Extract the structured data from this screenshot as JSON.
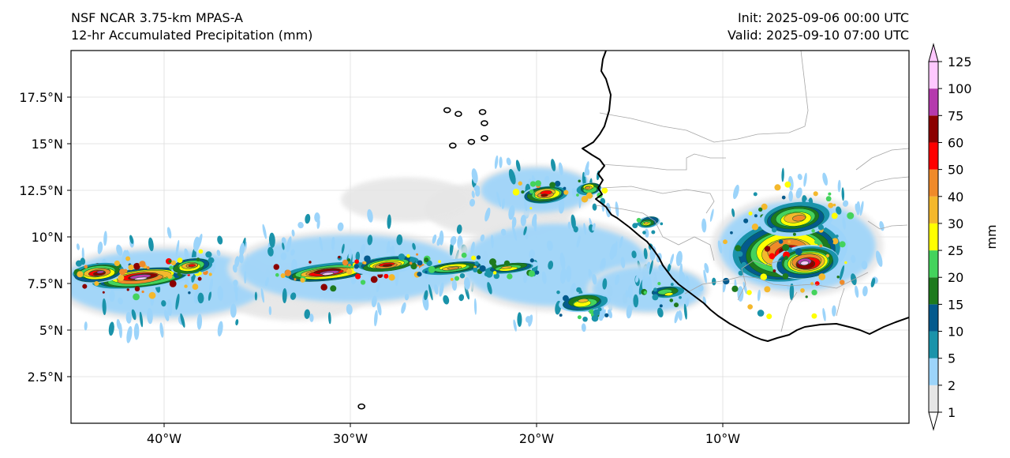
{
  "titles": {
    "left_line1": "NSF NCAR 3.75-km MPAS-A",
    "left_line2": "12-hr Accumulated Precipitation (mm)",
    "right_line1": "Init: 2025-09-06 00:00 UTC",
    "right_line2": "Valid: 2025-09-10 07:00 UTC"
  },
  "map": {
    "lon_range": [
      -45,
      0
    ],
    "lat_range": [
      0,
      20
    ],
    "lat_ticks": [
      {
        "value": 17.5,
        "label": "17.5°N"
      },
      {
        "value": 15,
        "label": "15°N"
      },
      {
        "value": 12.5,
        "label": "12.5°N"
      },
      {
        "value": 10,
        "label": "10°N"
      },
      {
        "value": 7.5,
        "label": "7.5°N"
      },
      {
        "value": 5,
        "label": "5°N"
      },
      {
        "value": 2.5,
        "label": "2.5°N"
      }
    ],
    "lon_ticks": [
      {
        "value": -40,
        "label": "40°W"
      },
      {
        "value": -30,
        "label": "30°W"
      },
      {
        "value": -20,
        "label": "20°W"
      },
      {
        "value": -10,
        "label": "10°W"
      }
    ],
    "precip_cells": [
      {
        "lon": -41.2,
        "lat": 7.8,
        "rl": 2.8,
        "rt": 0.55,
        "v": 110
      },
      {
        "lon": -43.5,
        "lat": 8.1,
        "rl": 1.5,
        "rt": 0.5,
        "v": 80
      },
      {
        "lon": -38.6,
        "lat": 8.4,
        "rl": 1.2,
        "rt": 0.45,
        "v": 55
      },
      {
        "lon": -31.2,
        "lat": 8.1,
        "rl": 2.6,
        "rt": 0.45,
        "v": 110
      },
      {
        "lon": -28.0,
        "lat": 8.5,
        "rl": 1.8,
        "rt": 0.4,
        "v": 70
      },
      {
        "lon": -24.5,
        "lat": 8.4,
        "rl": 1.8,
        "rt": 0.35,
        "v": 45
      },
      {
        "lon": -21.5,
        "lat": 8.3,
        "rl": 1.5,
        "rt": 0.3,
        "v": 35
      },
      {
        "lon": -19.5,
        "lat": 12.3,
        "rl": 1.3,
        "rt": 0.5,
        "v": 65
      },
      {
        "lon": -17.2,
        "lat": 12.6,
        "rl": 0.7,
        "rt": 0.35,
        "v": 45
      },
      {
        "lon": -14.0,
        "lat": 10.8,
        "rl": 0.6,
        "rt": 0.3,
        "v": 30
      },
      {
        "lon": -13.0,
        "lat": 7.0,
        "rl": 1.0,
        "rt": 0.35,
        "v": 28
      },
      {
        "lon": -17.5,
        "lat": 6.5,
        "rl": 1.4,
        "rt": 0.5,
        "v": 30
      },
      {
        "lon": -6.5,
        "lat": 9.2,
        "rl": 3.2,
        "rt": 1.8,
        "v": 60
      },
      {
        "lon": -5.5,
        "lat": 8.6,
        "rl": 1.8,
        "rt": 0.9,
        "v": 110
      },
      {
        "lon": -6.0,
        "lat": 11.0,
        "rl": 2.0,
        "rt": 0.9,
        "v": 45
      }
    ],
    "light_zones": [
      {
        "lon": -40.0,
        "lat": 7.5,
        "rl": 5.5,
        "rt": 1.8
      },
      {
        "lon": -30.0,
        "lat": 8.3,
        "rl": 6.0,
        "rt": 1.8
      },
      {
        "lon": -19.0,
        "lat": 8.5,
        "rl": 5.0,
        "rt": 2.2
      },
      {
        "lon": -14.0,
        "lat": 7.2,
        "rl": 3.0,
        "rt": 1.2
      },
      {
        "lon": -20.0,
        "lat": 12.5,
        "rl": 3.0,
        "rt": 1.2
      },
      {
        "lon": -6.0,
        "lat": 9.5,
        "rl": 4.2,
        "rt": 2.4
      }
    ],
    "gray_zones": [
      {
        "lon": -22.0,
        "lat": 11.5,
        "rl": 4.0,
        "rt": 1.5
      },
      {
        "lon": -33.0,
        "lat": 7.0,
        "rl": 4.0,
        "rt": 1.5
      },
      {
        "lon": -27.0,
        "lat": 12.0,
        "rl": 3.5,
        "rt": 1.2
      }
    ],
    "islands": [
      {
        "lon": -24.8,
        "lat": 16.8
      },
      {
        "lon": -24.2,
        "lat": 16.6
      },
      {
        "lon": -22.9,
        "lat": 16.7
      },
      {
        "lon": -22.8,
        "lat": 16.1
      },
      {
        "lon": -22.8,
        "lat": 15.3
      },
      {
        "lon": -23.5,
        "lat": 15.1
      },
      {
        "lon": -24.5,
        "lat": 14.9
      },
      {
        "lon": -29.4,
        "lat": 0.9
      }
    ]
  },
  "colorbar": {
    "unit_label": "mm",
    "levels": [
      1,
      2,
      5,
      10,
      15,
      20,
      25,
      30,
      40,
      50,
      60,
      75,
      100,
      125
    ],
    "labels": [
      "1",
      "2",
      "5",
      "10",
      "15",
      "20",
      "25",
      "30",
      "40",
      "50",
      "60",
      "75",
      "100",
      "125"
    ],
    "colors": [
      "#e6e6e6",
      "#9cd4fa",
      "#1a93aa",
      "#045a8d",
      "#1e7a1e",
      "#44d35c",
      "#ffff00",
      "#f4b82c",
      "#ef8a2a",
      "#ff0000",
      "#8b0000",
      "#b53aad",
      "#ffc8ff"
    ]
  },
  "colors": {
    "coastline": "#000000",
    "border": "#a6a6a6",
    "grid": "#dddddd"
  }
}
